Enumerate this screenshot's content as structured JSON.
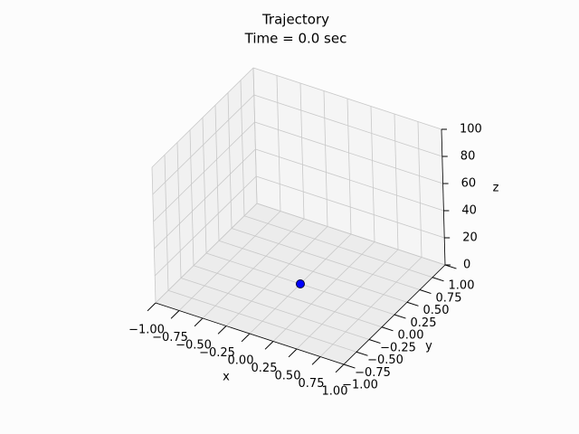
{
  "chart_data": {
    "type": "scatter3d",
    "title": "Trajectory",
    "subtitle": "Time = 0.0 sec",
    "xlabel": "x",
    "ylabel": "y",
    "zlabel": "z",
    "series": [
      {
        "color": "#0000ff",
        "x": [
          0
        ],
        "y": [
          0
        ],
        "z": [
          0
        ]
      }
    ],
    "xlim": [
      -1,
      1
    ],
    "ylim": [
      -1,
      1
    ],
    "zlim": [
      0,
      100
    ],
    "xticks": [
      {
        "value": -1,
        "label": "−1.00"
      },
      {
        "value": -0.75,
        "label": "−0.75"
      },
      {
        "value": -0.5,
        "label": "−0.50"
      },
      {
        "value": -0.25,
        "label": "−0.25"
      },
      {
        "value": 0,
        "label": "0.00"
      },
      {
        "value": 0.25,
        "label": "0.25"
      },
      {
        "value": 0.5,
        "label": "0.50"
      },
      {
        "value": 0.75,
        "label": "0.75"
      },
      {
        "value": 1,
        "label": "1.00"
      }
    ],
    "yticks": [
      {
        "value": -1,
        "label": "−1.00"
      },
      {
        "value": -0.75,
        "label": "−0.75"
      },
      {
        "value": -0.5,
        "label": "−0.50"
      },
      {
        "value": -0.25,
        "label": "−0.25"
      },
      {
        "value": 0,
        "label": "0.00"
      },
      {
        "value": 0.25,
        "label": "0.25"
      },
      {
        "value": 0.5,
        "label": "0.50"
      },
      {
        "value": 0.75,
        "label": "0.75"
      },
      {
        "value": 1,
        "label": "1.00"
      }
    ],
    "zticks": [
      0,
      20,
      40,
      60,
      80,
      100
    ],
    "grid": true
  }
}
